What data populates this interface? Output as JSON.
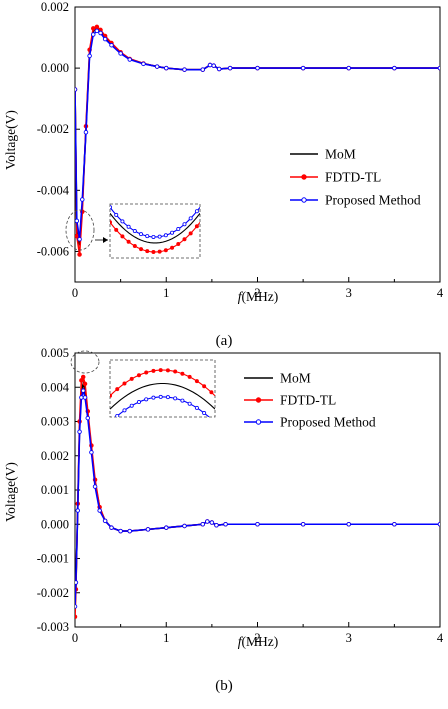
{
  "chart_data": [
    {
      "type": "line",
      "caption": "(a)",
      "xlabel_italic": "f",
      "xlabel_rest": "(MHz)",
      "ylabel": "Voltage(V)",
      "xlim": [
        0,
        4
      ],
      "ylim": [
        -0.007,
        0.002
      ],
      "xticks": [
        "0",
        "1",
        "2",
        "3",
        "4"
      ],
      "yticks": [
        "0.002",
        "0.000",
        "-0.002",
        "-0.004",
        "-0.006"
      ],
      "ytick_values": [
        0.002,
        0.0,
        -0.002,
        -0.004,
        -0.006
      ],
      "legend_position": "middle-right",
      "series": [
        {
          "name": "MoM",
          "color": "#000000",
          "marker": "none",
          "x": [
            0.0,
            0.02,
            0.05,
            0.08,
            0.12,
            0.16,
            0.2,
            0.24,
            0.28,
            0.33,
            0.4,
            0.5,
            0.6,
            0.75,
            0.9,
            1.0,
            1.2,
            1.4,
            1.48,
            1.52,
            1.58,
            1.7,
            2.0,
            2.5,
            3.0,
            3.5,
            4.0
          ],
          "y": [
            -0.0007,
            -0.0052,
            -0.0058,
            -0.0045,
            -0.002,
            0.0005,
            0.0012,
            0.0013,
            0.0012,
            0.001,
            0.0008,
            0.0005,
            0.0003,
            0.00015,
            5e-05,
            0.0,
            -5e-05,
            -5e-05,
            0.0001,
            8e-05,
            -3e-05,
            0.0,
            0.0,
            0.0,
            0.0,
            0.0,
            0.0
          ]
        },
        {
          "name": "FDTD-TL",
          "color": "#ff0000",
          "marker": "circle",
          "x": [
            0.0,
            0.02,
            0.05,
            0.08,
            0.12,
            0.16,
            0.2,
            0.24,
            0.28,
            0.33,
            0.4,
            0.5,
            0.6,
            0.75,
            0.9,
            1.0,
            1.2,
            1.4,
            1.48,
            1.52,
            1.58,
            1.7,
            2.0,
            2.5,
            3.0,
            3.5,
            4.0
          ],
          "y": [
            -0.0007,
            -0.0055,
            -0.0061,
            -0.0047,
            -0.0019,
            0.0006,
            0.0013,
            0.00135,
            0.00125,
            0.00105,
            0.00082,
            0.00052,
            0.0003,
            0.00015,
            5e-05,
            0.0,
            -5e-05,
            -5e-05,
            0.0001,
            8e-05,
            -3e-05,
            0.0,
            0.0,
            0.0,
            0.0,
            0.0,
            0.0
          ]
        },
        {
          "name": "Proposed Method",
          "color": "#0000ff",
          "marker": "circle-open",
          "x": [
            0.0,
            0.02,
            0.05,
            0.08,
            0.12,
            0.16,
            0.2,
            0.24,
            0.28,
            0.33,
            0.4,
            0.5,
            0.6,
            0.75,
            0.9,
            1.0,
            1.2,
            1.4,
            1.48,
            1.52,
            1.58,
            1.7,
            2.0,
            2.5,
            3.0,
            3.5,
            4.0
          ],
          "y": [
            -0.0007,
            -0.005,
            -0.0056,
            -0.0043,
            -0.0021,
            0.0004,
            0.0011,
            0.00122,
            0.00115,
            0.00095,
            0.00075,
            0.00048,
            0.00028,
            0.00014,
            5e-05,
            0.0,
            -5e-05,
            -5e-05,
            0.0001,
            8e-05,
            -3e-05,
            0.0,
            0.0,
            0.0,
            0.0,
            0.0,
            0.0
          ]
        }
      ]
    },
    {
      "type": "line",
      "caption": "(b)",
      "xlabel_italic": "f",
      "xlabel_rest": "(MHz)",
      "ylabel": "Voltage(V)",
      "xlim": [
        0,
        4
      ],
      "ylim": [
        -0.003,
        0.005
      ],
      "xticks": [
        "0",
        "1",
        "2",
        "3",
        "4"
      ],
      "yticks": [
        "0.005",
        "0.004",
        "0.003",
        "0.002",
        "0.001",
        "0.000",
        "-0.001",
        "-0.002",
        "-0.003"
      ],
      "ytick_values": [
        0.005,
        0.004,
        0.003,
        0.002,
        0.001,
        0.0,
        -0.001,
        -0.002,
        -0.003
      ],
      "legend_position": "top-right",
      "series": [
        {
          "name": "MoM",
          "color": "#000000",
          "marker": "none",
          "x": [
            0.0,
            0.01,
            0.03,
            0.05,
            0.07,
            0.09,
            0.11,
            0.14,
            0.18,
            0.22,
            0.27,
            0.33,
            0.4,
            0.5,
            0.6,
            0.8,
            1.0,
            1.2,
            1.4,
            1.45,
            1.5,
            1.55,
            1.65,
            2.0,
            2.5,
            3.0,
            3.5,
            4.0
          ],
          "y": [
            -0.0025,
            -0.0018,
            0.0005,
            0.0028,
            0.0039,
            0.0041,
            0.0039,
            0.0032,
            0.0022,
            0.0012,
            0.0005,
            0.0001,
            -0.0001,
            -0.0002,
            -0.0002,
            -0.00015,
            -0.0001,
            -5e-05,
            0.0,
            8e-05,
            5e-05,
            -3e-05,
            0.0,
            0.0,
            0.0,
            0.0,
            0.0,
            0.0
          ]
        },
        {
          "name": "FDTD-TL",
          "color": "#ff0000",
          "marker": "circle",
          "x": [
            0.0,
            0.01,
            0.03,
            0.05,
            0.07,
            0.09,
            0.11,
            0.14,
            0.18,
            0.22,
            0.27,
            0.33,
            0.4,
            0.5,
            0.6,
            0.8,
            1.0,
            1.2,
            1.4,
            1.45,
            1.5,
            1.55,
            1.65,
            2.0,
            2.5,
            3.0,
            3.5,
            4.0
          ],
          "y": [
            -0.0027,
            -0.0019,
            0.0006,
            0.003,
            0.0042,
            0.0043,
            0.0041,
            0.0033,
            0.0023,
            0.0013,
            0.0005,
            0.0001,
            -0.0001,
            -0.0002,
            -0.0002,
            -0.00015,
            -0.0001,
            -5e-05,
            0.0,
            8e-05,
            5e-05,
            -3e-05,
            0.0,
            0.0,
            0.0,
            0.0,
            0.0,
            0.0
          ]
        },
        {
          "name": "Proposed Method",
          "color": "#0000ff",
          "marker": "circle-open",
          "x": [
            0.0,
            0.01,
            0.03,
            0.05,
            0.07,
            0.09,
            0.11,
            0.14,
            0.18,
            0.22,
            0.27,
            0.33,
            0.4,
            0.5,
            0.6,
            0.8,
            1.0,
            1.2,
            1.4,
            1.45,
            1.5,
            1.55,
            1.65,
            2.0,
            2.5,
            3.0,
            3.5,
            4.0
          ],
          "y": [
            -0.0024,
            -0.0017,
            0.0004,
            0.0027,
            0.0037,
            0.0039,
            0.0037,
            0.0031,
            0.0021,
            0.0011,
            0.0004,
            0.0001,
            -0.0001,
            -0.0002,
            -0.0002,
            -0.00015,
            -0.0001,
            -5e-05,
            0.0,
            8e-05,
            5e-05,
            -3e-05,
            0.0,
            0.0,
            0.0,
            0.0,
            0.0,
            0.0
          ]
        }
      ]
    }
  ]
}
